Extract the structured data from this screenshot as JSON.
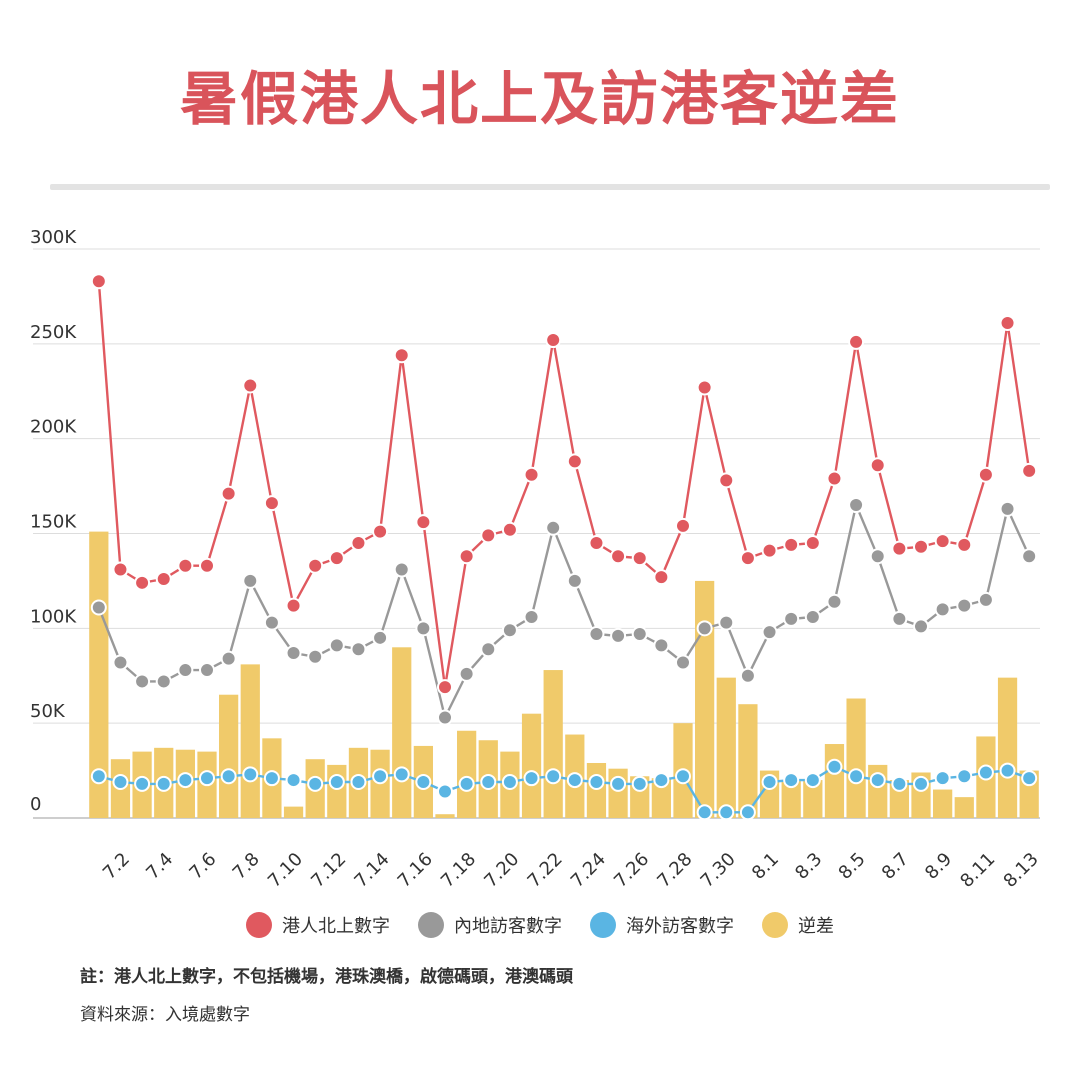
{
  "title": "暑假港人北上及訪港客逆差",
  "note": "註：港人北上數字，不包括機場，港珠澳橋，啟德碼頭，港澳碼頭",
  "source": "資料來源：入境處數字",
  "chart_data": {
    "type": "bar+line",
    "ylim": [
      0,
      300000
    ],
    "yticks": [
      {
        "v": 0,
        "label": "0"
      },
      {
        "v": 50000,
        "label": "50K"
      },
      {
        "v": 100000,
        "label": "100K"
      },
      {
        "v": 150000,
        "label": "150K"
      },
      {
        "v": 200000,
        "label": "200K"
      },
      {
        "v": 250000,
        "label": "250K"
      },
      {
        "v": 300000,
        "label": "300K"
      }
    ],
    "grid": true,
    "legend_position": "bottom",
    "categories": [
      "7.1",
      "7.2",
      "7.3",
      "7.4",
      "7.5",
      "7.6",
      "7.7",
      "7.8",
      "7.9",
      "7.10",
      "7.11",
      "7.12",
      "7.13",
      "7.14",
      "7.15",
      "7.16",
      "7.17",
      "7.18",
      "7.19",
      "7.20",
      "7.21",
      "7.22",
      "7.23",
      "7.24",
      "7.25",
      "7.26",
      "7.27",
      "7.28",
      "7.29",
      "7.30",
      "7.31",
      "8.1",
      "8.2",
      "8.3",
      "8.4",
      "8.5",
      "8.6",
      "8.7",
      "8.8",
      "8.9",
      "8.10",
      "8.11",
      "8.12",
      "8.13"
    ],
    "tick_labels": [
      "7.2",
      "7.4",
      "7.6",
      "7.8",
      "7.10",
      "7.12",
      "7.14",
      "7.16",
      "7.18",
      "7.20",
      "7.22",
      "7.24",
      "7.26",
      "7.28",
      "7.30",
      "8.1",
      "8.3",
      "8.5",
      "8.7",
      "8.9",
      "8.11",
      "8.13"
    ],
    "series": [
      {
        "name": "港人北上數字",
        "kind": "line",
        "color": "#e0595f",
        "values": [
          283000,
          131000,
          124000,
          126000,
          133000,
          133000,
          171000,
          228000,
          166000,
          112000,
          133000,
          137000,
          145000,
          151000,
          244000,
          156000,
          69000,
          138000,
          149000,
          152000,
          181000,
          252000,
          188000,
          145000,
          138000,
          137000,
          127000,
          154000,
          227000,
          178000,
          137000,
          141000,
          144000,
          145000,
          179000,
          251000,
          186000,
          142000,
          143000,
          146000,
          144000,
          181000,
          261000,
          183000
        ]
      },
      {
        "name": "內地訪客數字",
        "kind": "line",
        "color": "#999999",
        "values": [
          111000,
          82000,
          72000,
          72000,
          78000,
          78000,
          84000,
          125000,
          103000,
          87000,
          85000,
          91000,
          89000,
          95000,
          131000,
          100000,
          53000,
          76000,
          89000,
          99000,
          106000,
          153000,
          125000,
          97000,
          96000,
          97000,
          91000,
          82000,
          100000,
          103000,
          75000,
          98000,
          105000,
          106000,
          114000,
          165000,
          138000,
          105000,
          101000,
          110000,
          112000,
          115000,
          163000,
          138000
        ]
      },
      {
        "name": "海外訪客數字",
        "kind": "line",
        "color": "#5ab5e3",
        "values": [
          22000,
          19000,
          18000,
          18000,
          20000,
          21000,
          22000,
          23000,
          21000,
          20000,
          18000,
          19000,
          19000,
          22000,
          23000,
          19000,
          14000,
          18000,
          19000,
          19000,
          21000,
          22000,
          20000,
          19000,
          18000,
          18000,
          20000,
          22000,
          3000,
          3000,
          3000,
          19000,
          20000,
          20000,
          27000,
          22000,
          20000,
          18000,
          18000,
          21000,
          22000,
          24000,
          25000,
          21000
        ]
      },
      {
        "name": "逆差",
        "kind": "bar",
        "color": "#f0ca6a",
        "values": [
          151000,
          31000,
          35000,
          37000,
          36000,
          35000,
          65000,
          81000,
          42000,
          6000,
          31000,
          28000,
          37000,
          36000,
          90000,
          38000,
          2000,
          46000,
          41000,
          35000,
          55000,
          78000,
          44000,
          29000,
          26000,
          22000,
          21000,
          50000,
          125000,
          74000,
          60000,
          25000,
          20000,
          20000,
          39000,
          63000,
          28000,
          20000,
          24000,
          15000,
          11000,
          43000,
          74000,
          25000
        ]
      }
    ]
  }
}
